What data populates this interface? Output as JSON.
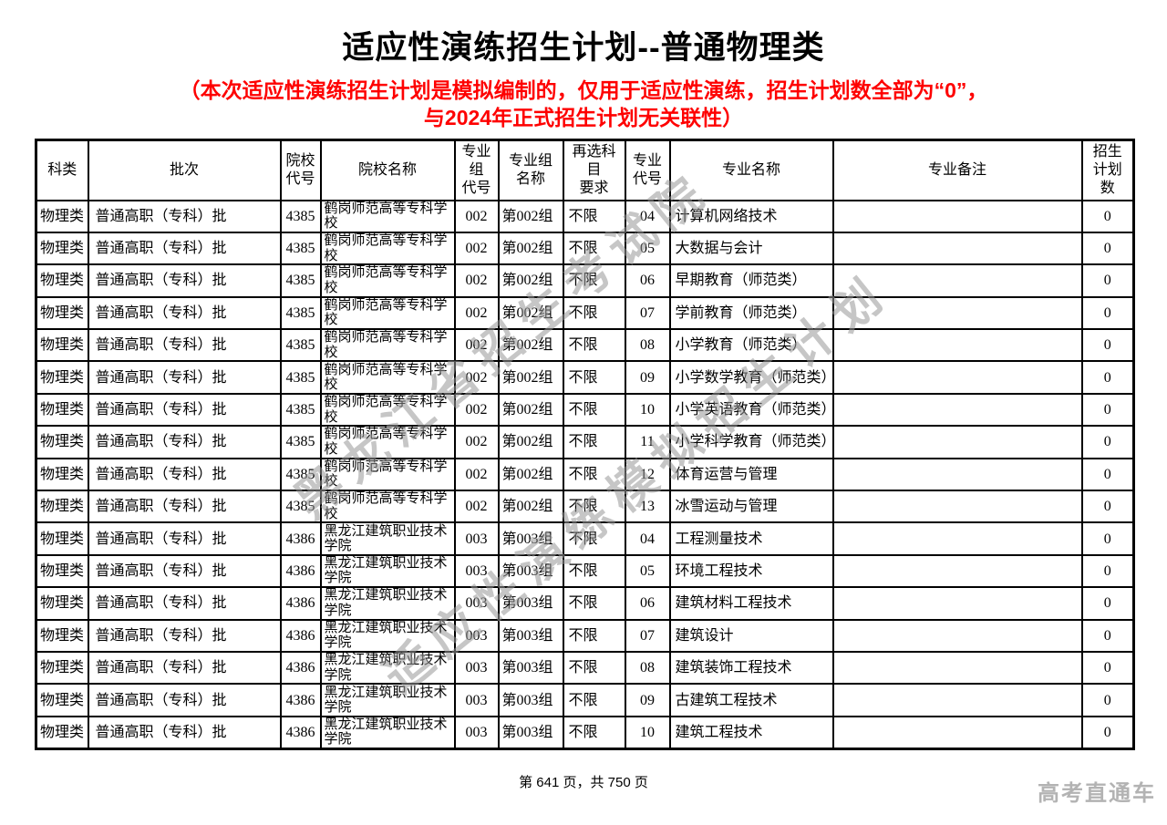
{
  "page": {
    "title": "适应性演练招生计划--普通物理类",
    "subtitle_line1": "（本次适应性演练招生计划是模拟编制的，仅用于适应性演练，招生计划数全部为“0”，",
    "subtitle_line2": "与2024年正式招生计划无关联性）",
    "watermarks": [
      "黑龙江省招生考试院",
      "适应性演练模拟招生计划"
    ],
    "footer": {
      "page_info": "第 641 页，共 750 页",
      "brand": "高考直通车"
    },
    "colors": {
      "subtitle_red": "#fe0000",
      "watermark_gray": "#989898",
      "brand_gray": "#b3b3b3",
      "table_border": "#000000"
    }
  },
  "table": {
    "headers": [
      "科类",
      "批次",
      "院校\n代号",
      "院校名称",
      "专业组\n代号",
      "专业组\n名称",
      "再选科目\n要求",
      "专业\n代号",
      "专业名称",
      "专业备注",
      "招生\n计划\n数"
    ],
    "rows": [
      [
        "物理类",
        "普通高职（专科）批",
        "4385",
        "鹤岗师范高等专科学校",
        "002",
        "第002组",
        "不限",
        "04",
        "计算机网络技术",
        "",
        "0"
      ],
      [
        "物理类",
        "普通高职（专科）批",
        "4385",
        "鹤岗师范高等专科学校",
        "002",
        "第002组",
        "不限",
        "05",
        "大数据与会计",
        "",
        "0"
      ],
      [
        "物理类",
        "普通高职（专科）批",
        "4385",
        "鹤岗师范高等专科学校",
        "002",
        "第002组",
        "不限",
        "06",
        "早期教育（师范类）",
        "",
        "0"
      ],
      [
        "物理类",
        "普通高职（专科）批",
        "4385",
        "鹤岗师范高等专科学校",
        "002",
        "第002组",
        "不限",
        "07",
        "学前教育（师范类）",
        "",
        "0"
      ],
      [
        "物理类",
        "普通高职（专科）批",
        "4385",
        "鹤岗师范高等专科学校",
        "002",
        "第002组",
        "不限",
        "08",
        "小学教育（师范类）",
        "",
        "0"
      ],
      [
        "物理类",
        "普通高职（专科）批",
        "4385",
        "鹤岗师范高等专科学校",
        "002",
        "第002组",
        "不限",
        "09",
        "小学数学教育（师范类）",
        "",
        "0"
      ],
      [
        "物理类",
        "普通高职（专科）批",
        "4385",
        "鹤岗师范高等专科学校",
        "002",
        "第002组",
        "不限",
        "10",
        "小学英语教育（师范类）",
        "",
        "0"
      ],
      [
        "物理类",
        "普通高职（专科）批",
        "4385",
        "鹤岗师范高等专科学校",
        "002",
        "第002组",
        "不限",
        "11",
        "小学科学教育（师范类）",
        "",
        "0"
      ],
      [
        "物理类",
        "普通高职（专科）批",
        "4385",
        "鹤岗师范高等专科学校",
        "002",
        "第002组",
        "不限",
        "12",
        "体育运营与管理",
        "",
        "0"
      ],
      [
        "物理类",
        "普通高职（专科）批",
        "4385",
        "鹤岗师范高等专科学校",
        "002",
        "第002组",
        "不限",
        "13",
        "冰雪运动与管理",
        "",
        "0"
      ],
      [
        "物理类",
        "普通高职（专科）批",
        "4386",
        "黑龙江建筑职业技术学院",
        "003",
        "第003组",
        "不限",
        "04",
        "工程测量技术",
        "",
        "0"
      ],
      [
        "物理类",
        "普通高职（专科）批",
        "4386",
        "黑龙江建筑职业技术学院",
        "003",
        "第003组",
        "不限",
        "05",
        "环境工程技术",
        "",
        "0"
      ],
      [
        "物理类",
        "普通高职（专科）批",
        "4386",
        "黑龙江建筑职业技术学院",
        "003",
        "第003组",
        "不限",
        "06",
        "建筑材料工程技术",
        "",
        "0"
      ],
      [
        "物理类",
        "普通高职（专科）批",
        "4386",
        "黑龙江建筑职业技术学院",
        "003",
        "第003组",
        "不限",
        "07",
        "建筑设计",
        "",
        "0"
      ],
      [
        "物理类",
        "普通高职（专科）批",
        "4386",
        "黑龙江建筑职业技术学院",
        "003",
        "第003组",
        "不限",
        "08",
        "建筑装饰工程技术",
        "",
        "0"
      ],
      [
        "物理类",
        "普通高职（专科）批",
        "4386",
        "黑龙江建筑职业技术学院",
        "003",
        "第003组",
        "不限",
        "09",
        "古建筑工程技术",
        "",
        "0"
      ],
      [
        "物理类",
        "普通高职（专科）批",
        "4386",
        "黑龙江建筑职业技术学院",
        "003",
        "第003组",
        "不限",
        "10",
        "建筑工程技术",
        "",
        "0"
      ]
    ]
  }
}
